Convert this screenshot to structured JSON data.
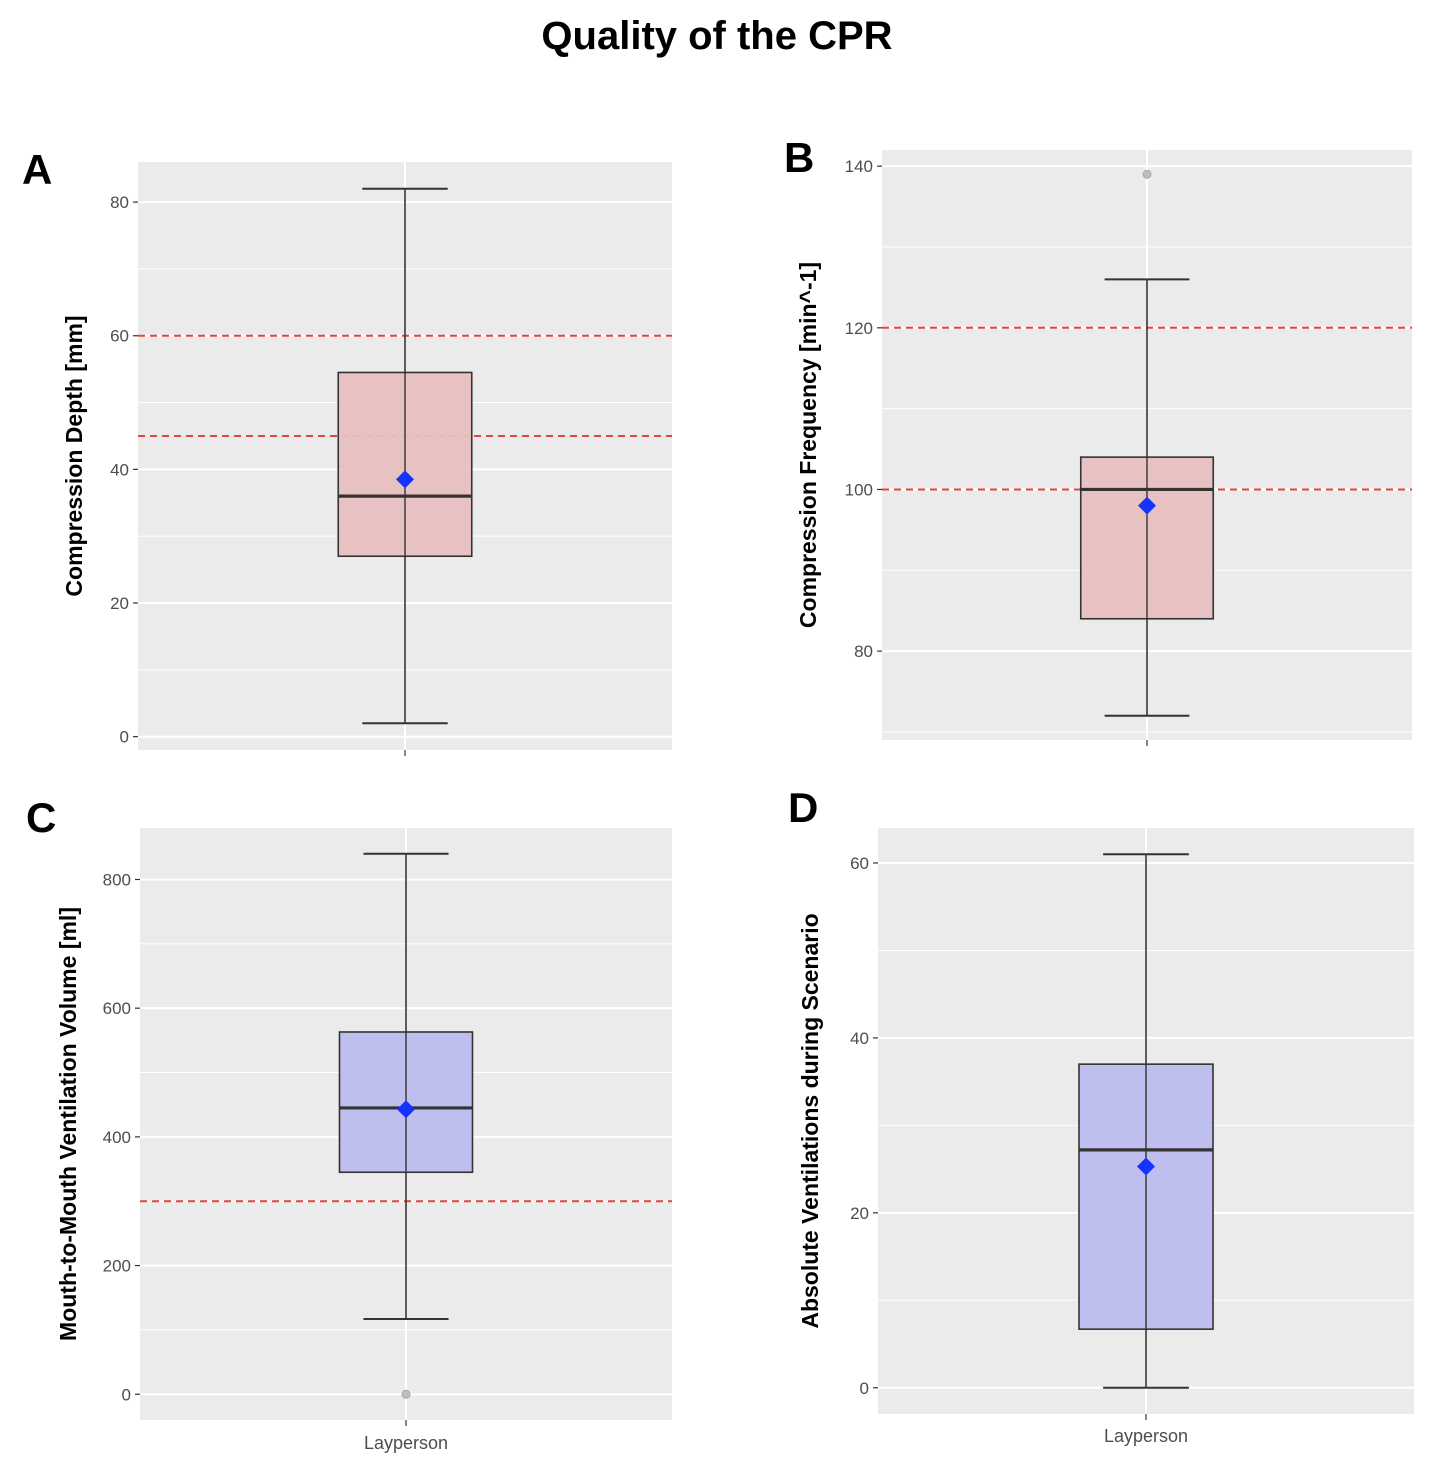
{
  "title": "Quality of the CPR",
  "colors": {
    "panel_bg": "#ebebeb",
    "grid": "#ffffff",
    "ref_line": "#e0493f",
    "box_red": "#e8bfc1",
    "box_blue": "#bcbdee",
    "box_edge": "#333333",
    "mean_marker": "#1433ff",
    "outlier": "#bdbdbd"
  },
  "chart_data": [
    {
      "panel": "A",
      "type": "box",
      "category": "",
      "ylabel": "Compression Depth [mm]",
      "ylim": [
        -2,
        86
      ],
      "yticks": [
        0,
        20,
        40,
        60,
        80
      ],
      "box": {
        "min": 2,
        "q1": 27,
        "median": 36,
        "q3": 54.5,
        "max": 82,
        "mean": 38.5
      },
      "outliers": [],
      "reference_lines": [
        60,
        45
      ],
      "fill": "red"
    },
    {
      "panel": "B",
      "type": "box",
      "category": "",
      "ylabel": "Compression Frequency [min^-1]",
      "ylim": [
        69,
        142
      ],
      "yticks": [
        80,
        100,
        120,
        140
      ],
      "box": {
        "min": 72,
        "q1": 84,
        "median": 100,
        "q3": 104,
        "max": 126,
        "mean": 98
      },
      "outliers": [
        139
      ],
      "reference_lines": [
        120,
        100
      ],
      "fill": "red"
    },
    {
      "panel": "C",
      "type": "box",
      "category": "Layperson",
      "ylabel": "Mouth-to-Mouth Ventilation Volume [ml]",
      "ylim": [
        -40,
        880
      ],
      "yticks": [
        0,
        200,
        400,
        600,
        800
      ],
      "box": {
        "min": 117,
        "q1": 345,
        "median": 445,
        "q3": 563,
        "max": 840,
        "mean": 443
      },
      "outliers": [
        0
      ],
      "reference_lines": [
        300
      ],
      "fill": "blue"
    },
    {
      "panel": "D",
      "type": "box",
      "category": "Layperson",
      "ylabel": "Absolute Ventilations during Scenario",
      "ylim": [
        -3,
        64
      ],
      "yticks": [
        0,
        20,
        40,
        60
      ],
      "box": {
        "min": 0,
        "q1": 6.7,
        "median": 27.2,
        "q3": 37,
        "max": 61,
        "mean": 25.3
      },
      "outliers": [],
      "reference_lines": [],
      "fill": "blue"
    }
  ]
}
